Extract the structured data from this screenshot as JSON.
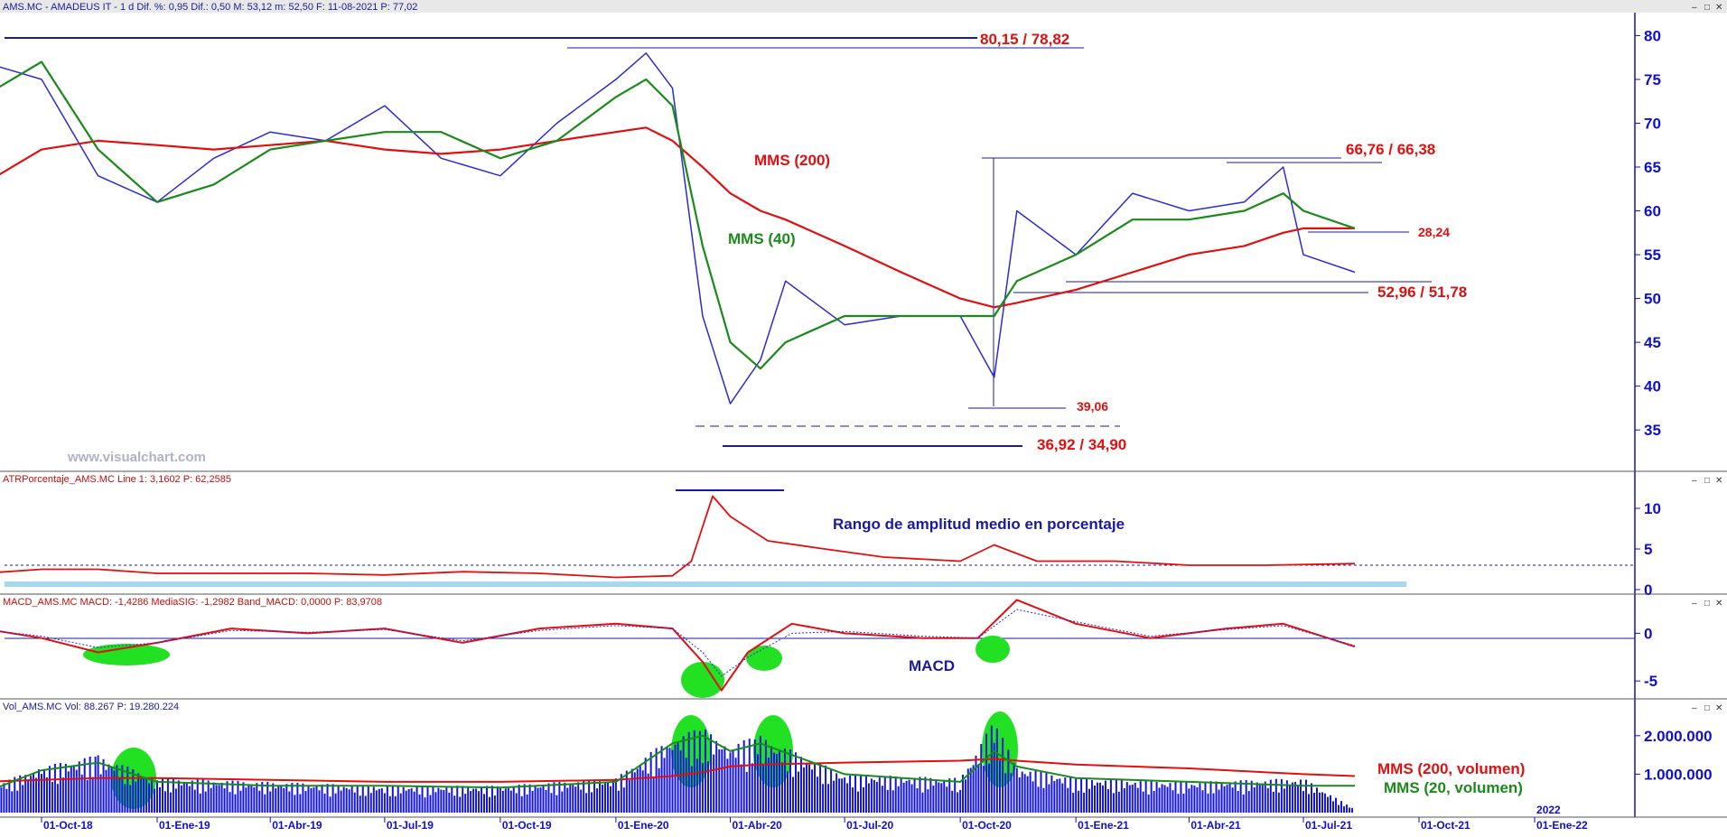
{
  "colors": {
    "price": "#2b2bd6",
    "mms200": "#e01010",
    "mms40": "#1a8a1a",
    "annotation_red": "#e01010",
    "annotation_blue": "#1a1aa0",
    "axis_blue": "#1010c8",
    "highlight_green": "#22e022",
    "atr_base": "#a8d8f0",
    "volume": "#1515e0"
  },
  "header": {
    "title": "AMS.MC - AMADEUS IT -  1 d  Dif. %: 0,95  Dif.: 0,50  M: 53,12  m: 52,50  F: 11-08-2021  P: 77,02",
    "panel_controls": [
      "–",
      "□",
      "✕"
    ]
  },
  "watermark": "www.visualchart.com",
  "panels": {
    "price": {
      "y_ticks": [
        "80",
        "75",
        "70",
        "65",
        "60",
        "55",
        "50",
        "45",
        "40",
        "35"
      ],
      "y_values": [
        80,
        75,
        70,
        65,
        60,
        55,
        50,
        45,
        40,
        35
      ],
      "annotations": {
        "resistance_top": "80,15 / 78,82",
        "resistance_mid": "66,76 / 66,38",
        "support_recent": "52,96 / 51,78",
        "gap": "28,24",
        "low_a": "39,06",
        "low_b": "36,92 / 34,90",
        "mms200_label": "MMS (200)",
        "mms40_label": "MMS (40)"
      }
    },
    "atr": {
      "header": "ATRPorcentaje_AMS.MC  Line 1: 3,1602  P: 62,2585",
      "caption": "Rango de amplitud medio en porcentaje",
      "y_ticks": [
        "10",
        "5",
        "0"
      ],
      "y_values": [
        10,
        5,
        0
      ]
    },
    "macd": {
      "header": "MACD_AMS.MC  MACD: -1,4286  MediaSIG: -1,2982  Band_MACD: 0,0000  P: 83,9708",
      "caption": "MACD",
      "y_ticks": [
        "0",
        "-5"
      ],
      "y_values": [
        0,
        -5
      ]
    },
    "volume": {
      "header": "Vol_AMS.MC  Vol: 88.267  P: 19.280.224",
      "y_ticks": [
        "2.000.000",
        "1.000.000"
      ],
      "y_values": [
        2000000,
        1000000
      ],
      "legend_red": "MMS (200, volumen)",
      "legend_green": "MMS (20, volumen)"
    }
  },
  "x_axis": {
    "labels": [
      "01-Oct-18",
      "01-Ene-19",
      "01-Abr-19",
      "01-Jul-19",
      "01-Oct-19",
      "01-Ene-20",
      "01-Abr-20",
      "01-Jul-20",
      "01-Oct-20",
      "01-Ene-21",
      "01-Abr-21",
      "01-Jul-21",
      "01-Oct-21",
      "01-Ene-22"
    ],
    "year_marker": "2022"
  },
  "chart_data": [
    {
      "type": "line",
      "title": "AMS.MC - AMADEUS IT",
      "x": [
        "2018-08-15",
        "2018-10-01",
        "2018-11-15",
        "2019-01-01",
        "2019-02-15",
        "2019-04-01",
        "2019-05-15",
        "2019-07-01",
        "2019-08-15",
        "2019-10-01",
        "2019-11-15",
        "2020-01-01",
        "2020-01-25",
        "2020-02-15",
        "2020-03-10",
        "2020-04-01",
        "2020-04-25",
        "2020-05-15",
        "2020-07-01",
        "2020-08-15",
        "2020-10-01",
        "2020-10-28",
        "2020-11-15",
        "2021-01-01",
        "2021-02-15",
        "2021-04-01",
        "2021-05-15",
        "2021-06-15",
        "2021-07-01",
        "2021-08-11"
      ],
      "series": [
        {
          "name": "",
          "values": [
            77,
            75,
            64,
            61,
            66,
            69,
            68,
            72,
            66,
            64,
            70,
            75,
            78,
            74,
            48,
            38,
            43,
            52,
            47,
            48,
            48,
            41,
            60,
            55,
            62,
            60,
            61,
            65,
            55,
            53
          ]
        },
        {
          "name": "MMS (200)",
          "values": [
            63,
            67,
            68,
            67.5,
            67,
            67.5,
            68,
            67,
            66.5,
            67,
            68,
            69,
            69.5,
            68,
            65,
            62,
            60,
            59,
            56,
            53,
            50,
            49,
            49.5,
            51,
            53,
            55,
            56,
            57.5,
            58,
            58
          ]
        },
        {
          "name": "MMS (40)",
          "values": [
            73,
            77,
            67,
            61,
            63,
            67,
            68,
            69,
            69,
            66,
            68,
            73,
            75,
            72,
            56,
            45,
            42,
            45,
            48,
            48,
            48,
            48,
            52,
            55,
            59,
            59,
            60,
            62,
            60,
            58
          ]
        }
      ],
      "ylim": [
        31,
        82
      ],
      "annotations": [
        "80,15 / 78,82",
        "66,76 / 66,38",
        "52,96 / 51,78",
        "28,24",
        "39,06",
        "36,92 / 34,90",
        "MMS (200)",
        "MMS (40)"
      ]
    },
    {
      "type": "line",
      "title": "ATRPorcentaje_AMS.MC",
      "x": [
        "2018-08-15",
        "2018-10-01",
        "2018-11-15",
        "2019-01-01",
        "2019-03-01",
        "2019-05-01",
        "2019-07-01",
        "2019-09-01",
        "2019-11-01",
        "2020-01-01",
        "2020-02-15",
        "2020-03-01",
        "2020-03-18",
        "2020-04-01",
        "2020-05-01",
        "2020-06-15",
        "2020-08-01",
        "2020-10-01",
        "2020-10-28",
        "2020-12-01",
        "2021-02-01",
        "2021-04-01",
        "2021-06-01",
        "2021-08-11"
      ],
      "series": [
        {
          "name": "",
          "values": [
            2.0,
            2.5,
            2.5,
            2.0,
            2.0,
            2.0,
            1.8,
            2.2,
            2.0,
            1.5,
            1.7,
            3.5,
            11.5,
            9.0,
            6.0,
            5.0,
            4.0,
            3.5,
            5.5,
            3.5,
            3.5,
            3.0,
            3.0,
            3.2
          ]
        }
      ],
      "ylim": [
        0,
        12
      ],
      "annotations": [
        "Rango de amplitud medio en porcentaje"
      ]
    },
    {
      "type": "line",
      "title": "MACD_AMS.MC",
      "x": [
        "2018-08-15",
        "2018-10-01",
        "2018-11-15",
        "2019-01-01",
        "2019-03-01",
        "2019-05-01",
        "2019-07-01",
        "2019-09-01",
        "2019-11-01",
        "2020-01-01",
        "2020-02-15",
        "2020-03-10",
        "2020-03-25",
        "2020-04-15",
        "2020-05-20",
        "2020-07-01",
        "2020-09-01",
        "2020-10-15",
        "2020-11-15",
        "2021-01-01",
        "2021-03-01",
        "2021-05-01",
        "2021-06-15",
        "2021-08-11"
      ],
      "series": [
        {
          "name": "MACD",
          "values": [
            0.5,
            -0.5,
            -2.0,
            -1.0,
            0.5,
            0.0,
            0.5,
            -1.0,
            0.5,
            1.0,
            0.5,
            -3.0,
            -6.0,
            -2.0,
            1.0,
            0.0,
            -0.5,
            -0.5,
            3.5,
            1.0,
            -0.5,
            0.5,
            1.0,
            -1.4
          ]
        },
        {
          "name": "MediaSIG",
          "values": [
            0.4,
            -0.3,
            -1.5,
            -1.0,
            0.3,
            0.1,
            0.4,
            -0.8,
            0.3,
            0.8,
            0.5,
            -2.0,
            -4.5,
            -2.5,
            0.0,
            0.2,
            -0.3,
            -0.5,
            2.5,
            1.2,
            -0.3,
            0.4,
            0.8,
            -1.3
          ]
        }
      ],
      "ylim": [
        -6.5,
        2.5
      ],
      "annotations": [
        "MACD"
      ]
    },
    {
      "type": "bar",
      "title": "Vol_AMS.MC",
      "x": [
        "2018-08-15",
        "2018-10-01",
        "2018-11-15",
        "2019-01-01",
        "2019-04-01",
        "2019-07-01",
        "2019-10-01",
        "2020-01-01",
        "2020-02-15",
        "2020-03-10",
        "2020-04-01",
        "2020-04-25",
        "2020-07-01",
        "2020-10-01",
        "2020-10-28",
        "2020-11-15",
        "2021-01-01",
        "2021-04-01",
        "2021-07-01",
        "2021-08-11"
      ],
      "series": [
        {
          "name": "",
          "values": [
            600000,
            1200000,
            1500000,
            900000,
            800000,
            700000,
            700000,
            900000,
            2000000,
            2200000,
            1800000,
            2000000,
            1000000,
            900000,
            2400000,
            1200000,
            900000,
            800000,
            900000,
            88267
          ]
        },
        {
          "name": "MMS (200, volumen)",
          "values": [
            800000,
            850000,
            900000,
            900000,
            850000,
            800000,
            800000,
            850000,
            950000,
            1050000,
            1200000,
            1250000,
            1300000,
            1350000,
            1400000,
            1350000,
            1250000,
            1150000,
            1000000,
            950000
          ]
        },
        {
          "name": "MMS (20, volumen)",
          "values": [
            500000,
            1100000,
            1300000,
            800000,
            700000,
            700000,
            650000,
            800000,
            1800000,
            2000000,
            1600000,
            1800000,
            1000000,
            800000,
            1600000,
            1200000,
            900000,
            800000,
            700000,
            700000
          ]
        }
      ],
      "ylim": [
        0,
        2700000
      ],
      "annotations": [
        "MMS (200, volumen)",
        "MMS (20, volumen)"
      ]
    }
  ]
}
